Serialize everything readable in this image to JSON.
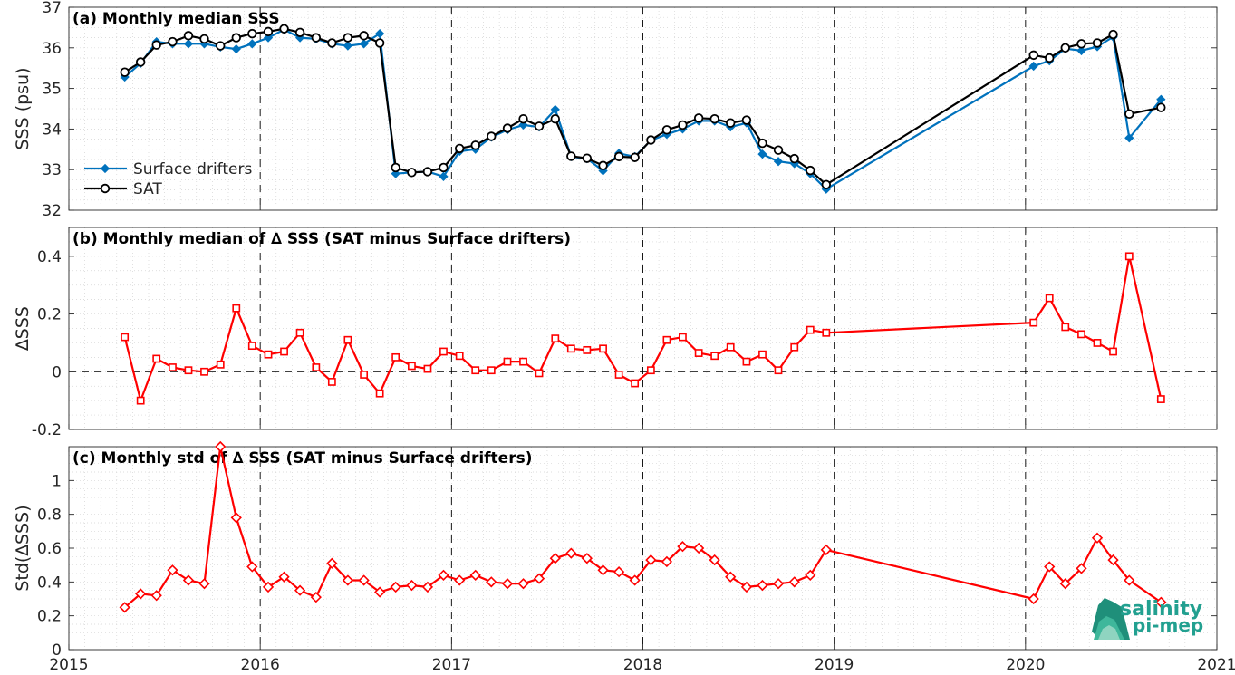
{
  "chart_data": [
    {
      "type": "line",
      "title": "(a) Monthly median SSS",
      "ylabel": "SSS (psu)",
      "xlim": [
        2015,
        2021
      ],
      "ylim": [
        32,
        37
      ],
      "yticks": [
        32,
        33,
        34,
        35,
        36,
        37
      ],
      "legend_position": "bottom-left",
      "series": [
        {
          "name": "Surface drifters",
          "color": "#0072BD",
          "marker": "diamond",
          "x": [
            2015.292,
            2015.375,
            2015.458,
            2015.542,
            2015.625,
            2015.708,
            2015.792,
            2015.875,
            2015.958,
            2016.042,
            2016.125,
            2016.208,
            2016.292,
            2016.375,
            2016.458,
            2016.542,
            2016.625,
            2016.708,
            2016.792,
            2016.875,
            2016.958,
            2017.042,
            2017.125,
            2017.208,
            2017.292,
            2017.375,
            2017.458,
            2017.542,
            2017.625,
            2017.708,
            2017.792,
            2017.875,
            2017.958,
            2018.042,
            2018.125,
            2018.208,
            2018.292,
            2018.375,
            2018.458,
            2018.542,
            2018.625,
            2018.708,
            2018.792,
            2018.875,
            2018.958,
            2020.042,
            2020.125,
            2020.208,
            2020.292,
            2020.375,
            2020.458,
            2020.542,
            2020.708
          ],
          "y": [
            35.28,
            35.62,
            36.15,
            36.1,
            36.1,
            36.1,
            36.02,
            35.97,
            36.1,
            36.25,
            36.45,
            36.25,
            36.22,
            36.1,
            36.05,
            36.1,
            36.35,
            32.9,
            32.93,
            32.95,
            32.83,
            33.45,
            33.5,
            33.8,
            33.98,
            34.1,
            34.05,
            34.48,
            33.32,
            33.27,
            32.97,
            33.4,
            33.32,
            33.72,
            33.87,
            34.0,
            34.2,
            34.2,
            34.05,
            34.15,
            33.38,
            33.2,
            33.15,
            32.9,
            32.52,
            35.55,
            35.68,
            35.98,
            35.93,
            36.03,
            36.27,
            33.78,
            34.73
          ]
        },
        {
          "name": "SAT",
          "color": "#000000",
          "marker": "circle",
          "x": [
            2015.292,
            2015.375,
            2015.458,
            2015.542,
            2015.625,
            2015.708,
            2015.792,
            2015.875,
            2015.958,
            2016.042,
            2016.125,
            2016.208,
            2016.292,
            2016.375,
            2016.458,
            2016.542,
            2016.625,
            2016.708,
            2016.792,
            2016.875,
            2016.958,
            2017.042,
            2017.125,
            2017.208,
            2017.292,
            2017.375,
            2017.458,
            2017.542,
            2017.625,
            2017.708,
            2017.792,
            2017.875,
            2017.958,
            2018.042,
            2018.125,
            2018.208,
            2018.292,
            2018.375,
            2018.458,
            2018.542,
            2018.625,
            2018.708,
            2018.792,
            2018.875,
            2018.958,
            2020.042,
            2020.125,
            2020.208,
            2020.292,
            2020.375,
            2020.458,
            2020.542,
            2020.708
          ],
          "y": [
            35.4,
            35.65,
            36.07,
            36.15,
            36.3,
            36.22,
            36.05,
            36.25,
            36.35,
            36.4,
            36.47,
            36.38,
            36.25,
            36.12,
            36.25,
            36.3,
            36.12,
            33.05,
            32.93,
            32.95,
            33.05,
            33.52,
            33.6,
            33.82,
            34.02,
            34.25,
            34.07,
            34.25,
            33.33,
            33.28,
            33.1,
            33.32,
            33.3,
            33.73,
            33.98,
            34.1,
            34.27,
            34.25,
            34.15,
            34.22,
            33.65,
            33.48,
            33.27,
            32.98,
            32.63,
            35.82,
            35.75,
            36.0,
            36.1,
            36.12,
            36.33,
            34.37,
            34.53
          ]
        }
      ]
    },
    {
      "type": "line",
      "title": "(b) Monthly median of ∆ SSS (SAT minus Surface drifters)",
      "ylabel": "∆SSS",
      "xlim": [
        2015,
        2021
      ],
      "ylim": [
        -0.2,
        0.5
      ],
      "yticks": [
        -0.2,
        0,
        0.2,
        0.4
      ],
      "reference_line": 0,
      "series": [
        {
          "name": "",
          "color": "#FF0000",
          "marker": "square",
          "x": [
            2015.292,
            2015.375,
            2015.458,
            2015.542,
            2015.625,
            2015.708,
            2015.792,
            2015.875,
            2015.958,
            2016.042,
            2016.125,
            2016.208,
            2016.292,
            2016.375,
            2016.458,
            2016.542,
            2016.625,
            2016.708,
            2016.792,
            2016.875,
            2016.958,
            2017.042,
            2017.125,
            2017.208,
            2017.292,
            2017.375,
            2017.458,
            2017.542,
            2017.625,
            2017.708,
            2017.792,
            2017.875,
            2017.958,
            2018.042,
            2018.125,
            2018.208,
            2018.292,
            2018.375,
            2018.458,
            2018.542,
            2018.625,
            2018.708,
            2018.792,
            2018.875,
            2018.958,
            2020.042,
            2020.125,
            2020.208,
            2020.292,
            2020.375,
            2020.458,
            2020.542,
            2020.708
          ],
          "y": [
            0.12,
            -0.1,
            0.045,
            0.015,
            0.005,
            0.0,
            0.025,
            0.22,
            0.09,
            0.06,
            0.07,
            0.135,
            0.015,
            -0.035,
            0.11,
            -0.01,
            -0.075,
            0.05,
            0.02,
            0.01,
            0.07,
            0.055,
            0.005,
            0.005,
            0.035,
            0.035,
            -0.005,
            0.115,
            0.08,
            0.075,
            0.08,
            -0.01,
            -0.04,
            0.005,
            0.11,
            0.12,
            0.065,
            0.055,
            0.085,
            0.035,
            0.06,
            0.005,
            0.085,
            0.145,
            0.135,
            0.17,
            0.255,
            0.155,
            0.13,
            0.1,
            0.07,
            0.4,
            -0.095
          ]
        }
      ]
    },
    {
      "type": "line",
      "title": "(c) Monthly std of ∆ SSS (SAT minus Surface drifters)",
      "ylabel": "Std(∆SSS)",
      "xlabel": "",
      "xlim": [
        2015,
        2021
      ],
      "ylim": [
        0,
        1.2
      ],
      "yticks": [
        0,
        0.2,
        0.4,
        0.6,
        0.8,
        1
      ],
      "xticks": [
        2015,
        2016,
        2017,
        2018,
        2019,
        2020,
        2021
      ],
      "series": [
        {
          "name": "",
          "color": "#FF0000",
          "marker": "diamond",
          "x": [
            2015.292,
            2015.375,
            2015.458,
            2015.542,
            2015.625,
            2015.708,
            2015.792,
            2015.875,
            2015.958,
            2016.042,
            2016.125,
            2016.208,
            2016.292,
            2016.375,
            2016.458,
            2016.542,
            2016.625,
            2016.708,
            2016.792,
            2016.875,
            2016.958,
            2017.042,
            2017.125,
            2017.208,
            2017.292,
            2017.375,
            2017.458,
            2017.542,
            2017.625,
            2017.708,
            2017.792,
            2017.875,
            2017.958,
            2018.042,
            2018.125,
            2018.208,
            2018.292,
            2018.375,
            2018.458,
            2018.542,
            2018.625,
            2018.708,
            2018.792,
            2018.875,
            2018.958,
            2020.042,
            2020.125,
            2020.208,
            2020.292,
            2020.375,
            2020.458,
            2020.542,
            2020.708
          ],
          "y": [
            0.25,
            0.33,
            0.32,
            0.47,
            0.41,
            0.39,
            1.2,
            0.78,
            0.49,
            0.37,
            0.43,
            0.35,
            0.31,
            0.51,
            0.41,
            0.41,
            0.34,
            0.37,
            0.38,
            0.37,
            0.44,
            0.41,
            0.44,
            0.4,
            0.39,
            0.39,
            0.42,
            0.54,
            0.57,
            0.54,
            0.47,
            0.46,
            0.41,
            0.53,
            0.52,
            0.61,
            0.6,
            0.53,
            0.43,
            0.37,
            0.38,
            0.39,
            0.4,
            0.44,
            0.59,
            0.3,
            0.49,
            0.39,
            0.48,
            0.66,
            0.53,
            0.41,
            0.28
          ]
        }
      ]
    }
  ],
  "logo": {
    "line1": "salinity",
    "line2": "pi-mep",
    "colors": [
      "#1f8f7a",
      "#3fb79b",
      "#8fd4c0"
    ]
  }
}
